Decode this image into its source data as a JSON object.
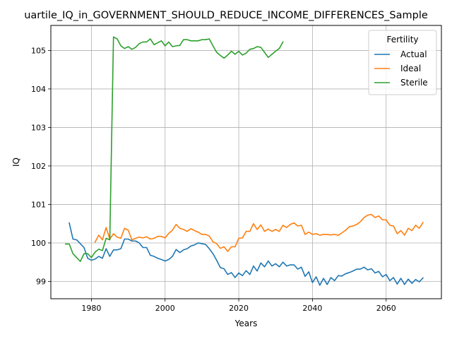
{
  "chart_data": {
    "type": "line",
    "title": "uartile_IQ_in_GOVERNMENT_SHOULD_REDUCE_INCOME_DIFFERENCES_Sample",
    "xlabel": "Years",
    "ylabel": "IQ",
    "xlim": [
      1969,
      2075
    ],
    "ylim": [
      98.55,
      105.65
    ],
    "x_ticks": [
      1980,
      2000,
      2020,
      2040,
      2060
    ],
    "y_ticks": [
      99,
      100,
      101,
      102,
      103,
      104,
      105
    ],
    "grid": true,
    "legend": {
      "title": "Fertility",
      "placement": "top-right"
    },
    "series": [
      {
        "name": "Actual",
        "color": "#1f77b4",
        "points": [
          [
            1974,
            100.52
          ],
          [
            1975,
            100.1
          ],
          [
            1976,
            100.08
          ],
          [
            1977,
            99.98
          ],
          [
            1978,
            99.88
          ],
          [
            1979,
            99.6
          ],
          [
            1980,
            99.55
          ],
          [
            1981,
            99.58
          ],
          [
            1982,
            99.65
          ],
          [
            1983,
            99.6
          ],
          [
            1984,
            99.85
          ],
          [
            1985,
            99.65
          ],
          [
            1986,
            99.82
          ],
          [
            1987,
            99.82
          ],
          [
            1988,
            99.85
          ],
          [
            1989,
            100.1
          ],
          [
            1990,
            100.1
          ],
          [
            1991,
            100.05
          ],
          [
            1992,
            100.05
          ],
          [
            1993,
            100.0
          ],
          [
            1994,
            99.88
          ],
          [
            1995,
            99.88
          ],
          [
            1996,
            99.68
          ],
          [
            1997,
            99.65
          ],
          [
            1998,
            99.6
          ],
          [
            1999,
            99.57
          ],
          [
            2000,
            99.53
          ],
          [
            2001,
            99.57
          ],
          [
            2002,
            99.65
          ],
          [
            2003,
            99.83
          ],
          [
            2004,
            99.75
          ],
          [
            2005,
            99.82
          ],
          [
            2006,
            99.85
          ],
          [
            2007,
            99.92
          ],
          [
            2008,
            99.95
          ],
          [
            2009,
            100.0
          ],
          [
            2010,
            99.98
          ],
          [
            2011,
            99.96
          ],
          [
            2012,
            99.85
          ],
          [
            2013,
            99.72
          ],
          [
            2014,
            99.55
          ],
          [
            2015,
            99.36
          ],
          [
            2016,
            99.33
          ],
          [
            2017,
            99.18
          ],
          [
            2018,
            99.23
          ],
          [
            2019,
            99.1
          ],
          [
            2020,
            99.22
          ],
          [
            2021,
            99.15
          ],
          [
            2022,
            99.28
          ],
          [
            2023,
            99.18
          ],
          [
            2024,
            99.4
          ],
          [
            2025,
            99.27
          ],
          [
            2026,
            99.48
          ],
          [
            2027,
            99.38
          ],
          [
            2028,
            99.53
          ],
          [
            2029,
            99.4
          ],
          [
            2030,
            99.46
          ],
          [
            2031,
            99.38
          ],
          [
            2032,
            99.5
          ],
          [
            2033,
            99.4
          ],
          [
            2034,
            99.43
          ],
          [
            2035,
            99.43
          ],
          [
            2036,
            99.32
          ],
          [
            2037,
            99.37
          ],
          [
            2038,
            99.13
          ],
          [
            2039,
            99.25
          ],
          [
            2040,
            98.97
          ],
          [
            2041,
            99.12
          ],
          [
            2042,
            98.9
          ],
          [
            2043,
            99.08
          ],
          [
            2044,
            98.92
          ],
          [
            2045,
            99.1
          ],
          [
            2046,
            99.02
          ],
          [
            2047,
            99.15
          ],
          [
            2048,
            99.14
          ],
          [
            2049,
            99.2
          ],
          [
            2050,
            99.23
          ],
          [
            2051,
            99.27
          ],
          [
            2052,
            99.32
          ],
          [
            2053,
            99.32
          ],
          [
            2054,
            99.37
          ],
          [
            2055,
            99.3
          ],
          [
            2056,
            99.33
          ],
          [
            2057,
            99.22
          ],
          [
            2058,
            99.26
          ],
          [
            2059,
            99.12
          ],
          [
            2060,
            99.18
          ],
          [
            2061,
            99.02
          ],
          [
            2062,
            99.1
          ],
          [
            2063,
            98.93
          ],
          [
            2064,
            99.08
          ],
          [
            2065,
            98.92
          ],
          [
            2066,
            99.06
          ],
          [
            2067,
            98.95
          ],
          [
            2068,
            99.05
          ],
          [
            2069,
            98.99
          ],
          [
            2070,
            99.09
          ]
        ]
      },
      {
        "name": "Ideal",
        "color": "#ff7f0e",
        "points": [
          [
            1981,
            100.02
          ],
          [
            1982,
            100.2
          ],
          [
            1983,
            100.08
          ],
          [
            1984,
            100.4
          ],
          [
            1985,
            100.1
          ],
          [
            1986,
            100.24
          ],
          [
            1987,
            100.15
          ],
          [
            1988,
            100.12
          ],
          [
            1989,
            100.38
          ],
          [
            1990,
            100.33
          ],
          [
            1991,
            100.08
          ],
          [
            1992,
            100.12
          ],
          [
            1993,
            100.15
          ],
          [
            1994,
            100.13
          ],
          [
            1995,
            100.16
          ],
          [
            1996,
            100.1
          ],
          [
            1997,
            100.12
          ],
          [
            1998,
            100.17
          ],
          [
            1999,
            100.17
          ],
          [
            2000,
            100.13
          ],
          [
            2001,
            100.25
          ],
          [
            2002,
            100.33
          ],
          [
            2003,
            100.48
          ],
          [
            2004,
            100.38
          ],
          [
            2005,
            100.35
          ],
          [
            2006,
            100.3
          ],
          [
            2007,
            100.37
          ],
          [
            2008,
            100.32
          ],
          [
            2009,
            100.28
          ],
          [
            2010,
            100.22
          ],
          [
            2011,
            100.22
          ],
          [
            2012,
            100.18
          ],
          [
            2013,
            100.03
          ],
          [
            2014,
            99.98
          ],
          [
            2015,
            99.86
          ],
          [
            2016,
            99.9
          ],
          [
            2017,
            99.78
          ],
          [
            2018,
            99.9
          ],
          [
            2019,
            99.9
          ],
          [
            2020,
            100.12
          ],
          [
            2021,
            100.13
          ],
          [
            2022,
            100.3
          ],
          [
            2023,
            100.3
          ],
          [
            2024,
            100.5
          ],
          [
            2025,
            100.35
          ],
          [
            2026,
            100.47
          ],
          [
            2027,
            100.3
          ],
          [
            2028,
            100.36
          ],
          [
            2029,
            100.3
          ],
          [
            2030,
            100.35
          ],
          [
            2031,
            100.3
          ],
          [
            2032,
            100.46
          ],
          [
            2033,
            100.4
          ],
          [
            2034,
            100.48
          ],
          [
            2035,
            100.52
          ],
          [
            2036,
            100.44
          ],
          [
            2037,
            100.46
          ],
          [
            2038,
            100.22
          ],
          [
            2039,
            100.28
          ],
          [
            2040,
            100.22
          ],
          [
            2041,
            100.24
          ],
          [
            2042,
            100.2
          ],
          [
            2043,
            100.22
          ],
          [
            2044,
            100.22
          ],
          [
            2045,
            100.21
          ],
          [
            2046,
            100.22
          ],
          [
            2047,
            100.2
          ],
          [
            2048,
            100.26
          ],
          [
            2049,
            100.33
          ],
          [
            2050,
            100.42
          ],
          [
            2051,
            100.44
          ],
          [
            2052,
            100.48
          ],
          [
            2053,
            100.55
          ],
          [
            2054,
            100.66
          ],
          [
            2055,
            100.72
          ],
          [
            2056,
            100.74
          ],
          [
            2057,
            100.66
          ],
          [
            2058,
            100.7
          ],
          [
            2059,
            100.6
          ],
          [
            2060,
            100.6
          ],
          [
            2061,
            100.46
          ],
          [
            2062,
            100.44
          ],
          [
            2063,
            100.24
          ],
          [
            2064,
            100.32
          ],
          [
            2065,
            100.2
          ],
          [
            2066,
            100.38
          ],
          [
            2067,
            100.32
          ],
          [
            2068,
            100.46
          ],
          [
            2069,
            100.38
          ],
          [
            2070,
            100.53
          ]
        ]
      },
      {
        "name": "Sterile",
        "color": "#2ca02c",
        "points": [
          [
            1973,
            99.97
          ],
          [
            1974,
            99.97
          ],
          [
            1975,
            99.72
          ],
          [
            1976,
            99.62
          ],
          [
            1977,
            99.52
          ],
          [
            1978,
            99.72
          ],
          [
            1979,
            99.72
          ],
          [
            1980,
            99.62
          ],
          [
            1981,
            99.76
          ],
          [
            1982,
            99.84
          ],
          [
            1983,
            99.8
          ],
          [
            1984,
            100.12
          ],
          [
            1985,
            100.08
          ],
          [
            1986,
            105.35
          ],
          [
            1987,
            105.3
          ],
          [
            1988,
            105.12
          ],
          [
            1989,
            105.05
          ],
          [
            1990,
            105.1
          ],
          [
            1991,
            105.03
          ],
          [
            1992,
            105.08
          ],
          [
            1993,
            105.18
          ],
          [
            1994,
            105.22
          ],
          [
            1995,
            105.22
          ],
          [
            1996,
            105.3
          ],
          [
            1997,
            105.15
          ],
          [
            1998,
            105.2
          ],
          [
            1999,
            105.25
          ],
          [
            2000,
            105.12
          ],
          [
            2001,
            105.22
          ],
          [
            2002,
            105.1
          ],
          [
            2003,
            105.12
          ],
          [
            2004,
            105.13
          ],
          [
            2005,
            105.28
          ],
          [
            2006,
            105.28
          ],
          [
            2007,
            105.25
          ],
          [
            2008,
            105.25
          ],
          [
            2009,
            105.25
          ],
          [
            2010,
            105.28
          ],
          [
            2011,
            105.28
          ],
          [
            2012,
            105.3
          ],
          [
            2013,
            105.12
          ],
          [
            2014,
            104.95
          ],
          [
            2015,
            104.87
          ],
          [
            2016,
            104.8
          ],
          [
            2017,
            104.88
          ],
          [
            2018,
            104.98
          ],
          [
            2019,
            104.9
          ],
          [
            2020,
            104.98
          ],
          [
            2021,
            104.88
          ],
          [
            2022,
            104.93
          ],
          [
            2023,
            105.03
          ],
          [
            2024,
            105.05
          ],
          [
            2025,
            105.1
          ],
          [
            2026,
            105.08
          ],
          [
            2027,
            104.95
          ],
          [
            2028,
            104.82
          ],
          [
            2029,
            104.9
          ],
          [
            2030,
            104.98
          ],
          [
            2031,
            105.05
          ],
          [
            2032,
            105.22
          ]
        ]
      }
    ]
  }
}
